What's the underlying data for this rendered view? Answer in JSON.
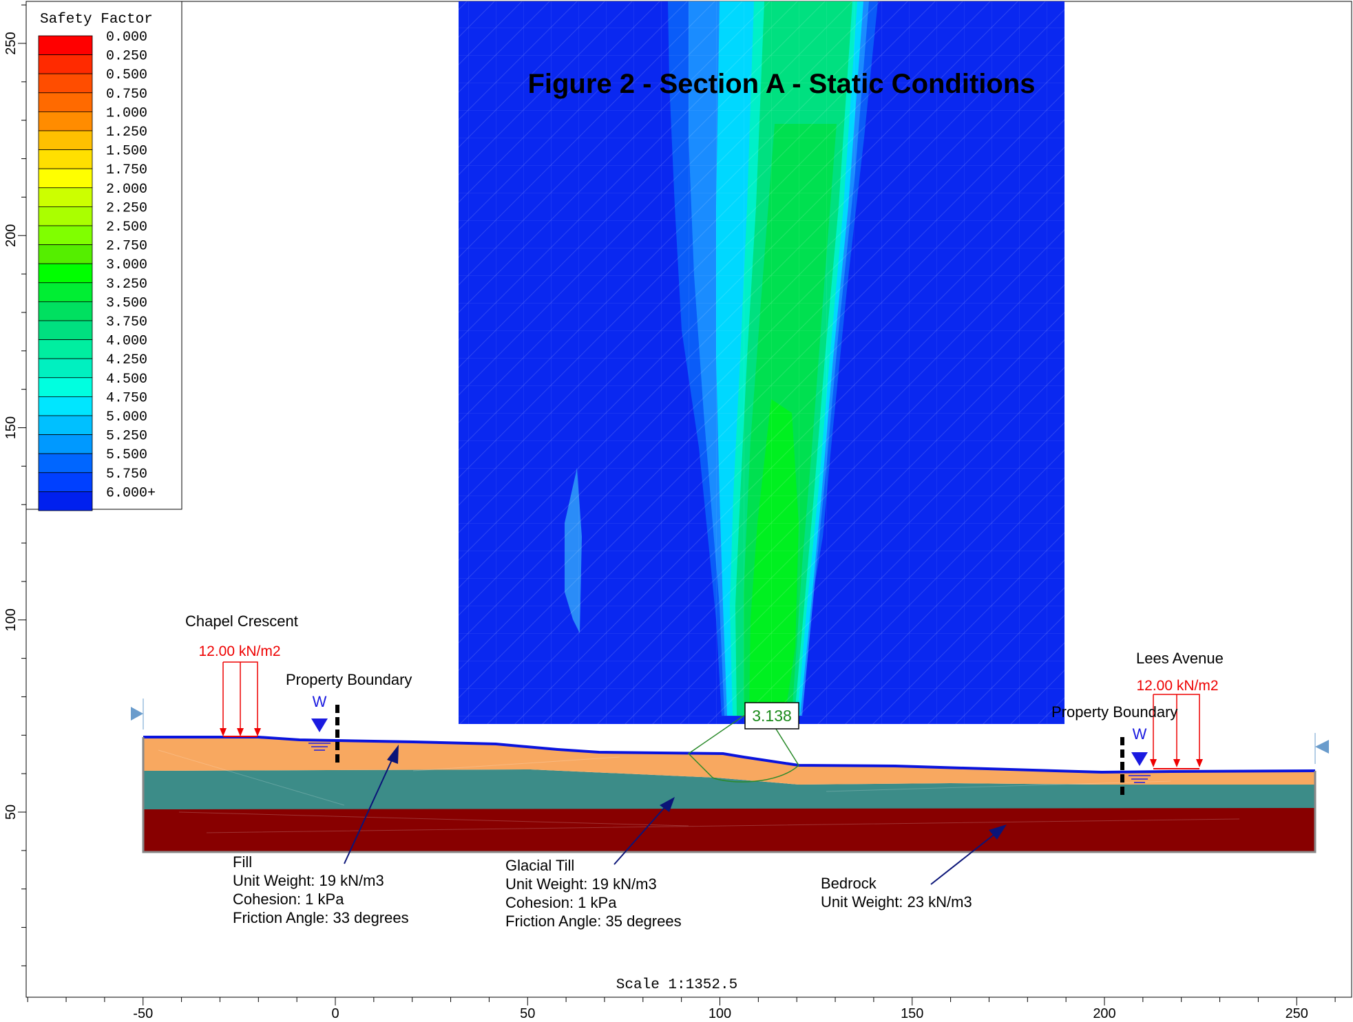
{
  "title": "Figure 2 - Section A - Static Conditions",
  "scale_label": "Scale 1:1352.5",
  "legend": {
    "title": "Safety Factor",
    "entries": [
      {
        "label": "0.000",
        "color": "#ff0000"
      },
      {
        "label": "0.250",
        "color": "#ff2a00"
      },
      {
        "label": "0.500",
        "color": "#ff4d00"
      },
      {
        "label": "0.750",
        "color": "#ff6a00"
      },
      {
        "label": "1.000",
        "color": "#ff8c00"
      },
      {
        "label": "1.250",
        "color": "#ffc000"
      },
      {
        "label": "1.500",
        "color": "#ffe000"
      },
      {
        "label": "1.750",
        "color": "#ffff00"
      },
      {
        "label": "2.000",
        "color": "#ccff00"
      },
      {
        "label": "2.250",
        "color": "#aaff00"
      },
      {
        "label": "2.500",
        "color": "#80ff00"
      },
      {
        "label": "2.750",
        "color": "#55ee00"
      },
      {
        "label": "3.000",
        "color": "#00ff00"
      },
      {
        "label": "3.250",
        "color": "#00ee33"
      },
      {
        "label": "3.500",
        "color": "#00e060"
      },
      {
        "label": "3.750",
        "color": "#00e080"
      },
      {
        "label": "4.000",
        "color": "#00eea0"
      },
      {
        "label": "4.250",
        "color": "#00f0c0"
      },
      {
        "label": "4.500",
        "color": "#00ffe0"
      },
      {
        "label": "4.750",
        "color": "#00e6ff"
      },
      {
        "label": "5.000",
        "color": "#00c0ff"
      },
      {
        "label": "5.250",
        "color": "#0099ff"
      },
      {
        "label": "5.500",
        "color": "#0066ff"
      },
      {
        "label": "5.750",
        "color": "#0040ff"
      },
      {
        "label": "6.000+",
        "color": "#0020ee"
      }
    ]
  },
  "axes": {
    "x_ticks": [
      "-50",
      "0",
      "50",
      "100",
      "150",
      "200",
      "250"
    ],
    "y_ticks": [
      "50",
      "100",
      "150",
      "200",
      "250"
    ]
  },
  "critical_factor": "3.138",
  "loads": {
    "left": "12.00 kN/m2",
    "right": "12.00 kN/m2"
  },
  "labels": {
    "chapel_crescent": "Chapel Crescent",
    "lees_avenue": "Lees Avenue",
    "property_boundary_left": "Property Boundary",
    "property_boundary_right": "Property Boundary",
    "water_left": "W",
    "water_right": "W"
  },
  "materials": {
    "fill": {
      "name": "Fill",
      "unit_weight": "Unit Weight: 19 kN/m3",
      "cohesion": "Cohesion: 1 kPa",
      "friction": "Friction Angle: 33 degrees",
      "color": "#f8a860"
    },
    "till": {
      "name": "Glacial Till",
      "unit_weight": "Unit Weight: 19 kN/m3",
      "cohesion": "Cohesion: 1 kPa",
      "friction": "Friction Angle: 35 degrees",
      "color": "#3c8c88"
    },
    "bedrock": {
      "name": "Bedrock",
      "unit_weight": "Unit Weight: 23 kN/m3",
      "color": "#880000"
    }
  }
}
